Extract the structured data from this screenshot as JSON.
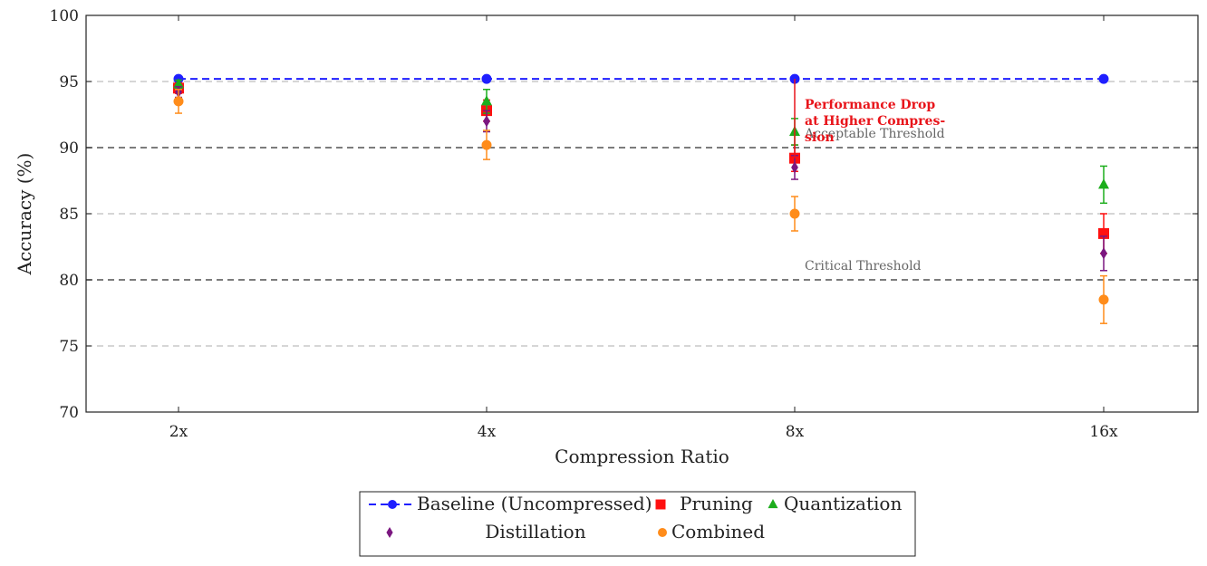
{
  "chart_data": {
    "type": "scatter",
    "categories": [
      "2x",
      "4x",
      "8x",
      "16x"
    ],
    "xlabel": "Compression Ratio",
    "ylabel": "Accuracy (%)",
    "ylim": [
      70,
      100
    ],
    "yticks": [
      70,
      75,
      80,
      85,
      90,
      95,
      100
    ],
    "grid": "horizontal dashed",
    "series": [
      {
        "key": "baseline",
        "name": "Baseline (Uncompressed)",
        "color": "#1f1fff",
        "marker": "circle",
        "line": "dashed",
        "values": [
          95.2,
          95.2,
          95.2,
          95.2
        ],
        "errors": [
          0,
          0,
          0,
          0
        ]
      },
      {
        "key": "pruning",
        "name": "Pruning",
        "color": "#ff1010",
        "marker": "square",
        "values": [
          94.5,
          92.8,
          89.2,
          83.5
        ],
        "errors": [
          0.4,
          0.8,
          1.0,
          1.5
        ]
      },
      {
        "key": "quantization",
        "name": "Quantization",
        "color": "#1cad1c",
        "marker": "triangle",
        "values": [
          94.8,
          93.5,
          91.2,
          87.2
        ],
        "errors": [
          0.3,
          0.9,
          1.0,
          1.4
        ]
      },
      {
        "key": "distillation",
        "name": "Distillation",
        "color": "#7b1780",
        "marker": "diamond",
        "values": [
          94.2,
          92.0,
          88.5,
          82.0
        ],
        "errors": [
          0.4,
          0.8,
          0.9,
          1.3
        ]
      },
      {
        "key": "combined",
        "name": "Combined",
        "color": "#ff8c1a",
        "marker": "circle",
        "values": [
          93.5,
          90.2,
          85.0,
          78.5
        ],
        "errors": [
          0.9,
          1.1,
          1.3,
          1.8
        ]
      }
    ],
    "thresholds": [
      {
        "value": 90,
        "label": "Acceptable Threshold"
      },
      {
        "value": 80,
        "label": "Critical Threshold"
      }
    ],
    "annotation": {
      "lines": [
        "Performance Drop",
        "at Higher Compres-",
        "sion"
      ],
      "x": "8x",
      "y_from": 95.2,
      "y_to": 89.2,
      "color": "#e8141a"
    },
    "legend": {
      "placement": "bottom-center",
      "columns": 3
    }
  }
}
